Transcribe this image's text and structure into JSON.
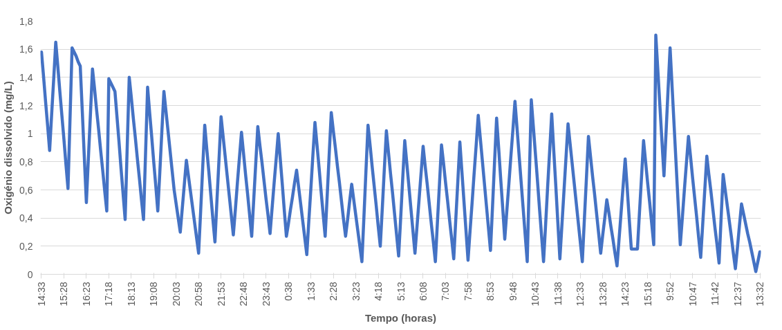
{
  "chart_data": {
    "type": "line",
    "xlabel": "Tempo (horas)",
    "ylabel": "Oxigénio dissolvido (mg/L)",
    "categories": [
      "14:33",
      null,
      null,
      null,
      null,
      null,
      null,
      null,
      null,
      null,
      null,
      "15:28",
      null,
      null,
      null,
      null,
      null,
      null,
      null,
      null,
      null,
      null,
      "16:23",
      null,
      null,
      null,
      null,
      null,
      null,
      null,
      null,
      null,
      null,
      "17:18",
      null,
      null,
      null,
      null,
      null,
      null,
      null,
      null,
      null,
      null,
      "18:13",
      null,
      null,
      null,
      null,
      null,
      null,
      null,
      null,
      null,
      null,
      "19:08",
      null,
      null,
      null,
      null,
      null,
      null,
      null,
      null,
      null,
      null,
      "20:03",
      null,
      null,
      null,
      null,
      null,
      null,
      null,
      null,
      null,
      null,
      "20:58",
      null,
      null,
      null,
      null,
      null,
      null,
      null,
      null,
      null,
      null,
      "21:53",
      null,
      null,
      null,
      null,
      null,
      null,
      null,
      null,
      null,
      null,
      "22:48",
      null,
      null,
      null,
      null,
      null,
      null,
      null,
      null,
      null,
      null,
      "23:43",
      null,
      null,
      null,
      null,
      null,
      null,
      null,
      null,
      null,
      null,
      "0:38",
      null,
      null,
      null,
      null,
      null,
      null,
      null,
      null,
      null,
      null,
      "1:33",
      null,
      null,
      null,
      null,
      null,
      null,
      null,
      null,
      null,
      null,
      "2:28",
      null,
      null,
      null,
      null,
      null,
      null,
      null,
      null,
      null,
      null,
      "3:23",
      null,
      null,
      null,
      null,
      null,
      null,
      null,
      null,
      null,
      null,
      "4:18",
      null,
      null,
      null,
      null,
      null,
      null,
      null,
      null,
      null,
      null,
      "5:13",
      null,
      null,
      null,
      null,
      null,
      null,
      null,
      null,
      null,
      null,
      "6:08",
      null,
      null,
      null,
      null,
      null,
      null,
      null,
      null,
      null,
      null,
      "7:03",
      null,
      null,
      null,
      null,
      null,
      null,
      null,
      null,
      null,
      null,
      "7:58",
      null,
      null,
      null,
      null,
      null,
      null,
      null,
      null,
      null,
      null,
      "8:53",
      null,
      null,
      null,
      null,
      null,
      null,
      null,
      null,
      null,
      null,
      "9:48",
      null,
      null,
      null,
      null,
      null,
      null,
      null,
      null,
      null,
      null,
      "10:43",
      null,
      null,
      null,
      null,
      null,
      null,
      null,
      null,
      null,
      null,
      "11:38",
      null,
      null,
      null,
      null,
      null,
      null,
      null,
      null,
      null,
      null,
      "12:33",
      null,
      null,
      null,
      null,
      null,
      null,
      null,
      null,
      null,
      null,
      "13:28",
      null,
      null,
      null,
      null,
      null,
      null,
      null,
      null,
      null,
      null,
      "14:23",
      null,
      null,
      null,
      null,
      null,
      null,
      null,
      null,
      null,
      null,
      "15:18",
      null,
      null,
      null,
      null,
      null,
      null,
      null,
      null,
      null,
      null,
      "9:52",
      null,
      null,
      null,
      null,
      null,
      null,
      null,
      null,
      null,
      null,
      "10:47",
      null,
      null,
      null,
      null,
      null,
      null,
      null,
      null,
      null,
      null,
      "11:42",
      null,
      null,
      null,
      null,
      null,
      null,
      null,
      null,
      null,
      null,
      "12:37",
      null,
      null,
      null,
      null,
      null,
      null,
      null,
      null,
      null,
      null,
      "13:32"
    ],
    "series": [
      {
        "color": "#4472c4",
        "values": [
          1.58,
          1.41,
          1.23,
          1.06,
          0.88,
          1.14,
          1.39,
          1.65,
          1.48,
          1.3,
          1.13,
          0.96,
          0.78,
          0.61,
          1.11,
          1.61,
          1.58,
          1.55,
          1.51,
          1.48,
          1.16,
          0.83,
          0.51,
          0.83,
          1.14,
          1.46,
          1.32,
          1.17,
          1.03,
          0.88,
          0.74,
          0.59,
          0.45,
          1.39,
          1.36,
          1.33,
          1.3,
          1.12,
          0.94,
          0.75,
          0.57,
          0.39,
          0.9,
          1.4,
          1.26,
          1.11,
          0.97,
          0.82,
          0.68,
          0.53,
          0.39,
          0.86,
          1.33,
          1.15,
          0.98,
          0.8,
          0.63,
          0.45,
          0.73,
          1.02,
          1.3,
          1.16,
          1.02,
          0.88,
          0.74,
          0.6,
          0.5,
          0.4,
          0.3,
          0.47,
          0.64,
          0.81,
          0.7,
          0.59,
          0.48,
          0.37,
          0.26,
          0.15,
          0.45,
          0.76,
          1.06,
          0.89,
          0.73,
          0.56,
          0.39,
          0.23,
          0.53,
          0.82,
          1.12,
          0.98,
          0.84,
          0.7,
          0.56,
          0.42,
          0.28,
          0.46,
          0.65,
          0.83,
          1.01,
          0.86,
          0.71,
          0.57,
          0.42,
          0.27,
          0.53,
          0.79,
          1.05,
          0.92,
          0.8,
          0.67,
          0.54,
          0.42,
          0.29,
          0.47,
          0.65,
          0.82,
          1.0,
          0.82,
          0.64,
          0.45,
          0.27,
          0.36,
          0.46,
          0.55,
          0.65,
          0.74,
          0.62,
          0.5,
          0.38,
          0.26,
          0.14,
          0.38,
          0.61,
          0.85,
          1.08,
          0.92,
          0.76,
          0.59,
          0.43,
          0.27,
          0.56,
          0.86,
          1.15,
          1.02,
          0.9,
          0.77,
          0.65,
          0.52,
          0.39,
          0.27,
          0.39,
          0.52,
          0.64,
          0.53,
          0.42,
          0.31,
          0.2,
          0.09,
          0.41,
          0.74,
          1.06,
          0.92,
          0.77,
          0.63,
          0.49,
          0.34,
          0.2,
          0.47,
          0.75,
          1.02,
          0.87,
          0.72,
          0.58,
          0.43,
          0.28,
          0.13,
          0.4,
          0.68,
          0.95,
          0.79,
          0.63,
          0.47,
          0.31,
          0.15,
          0.34,
          0.53,
          0.72,
          0.91,
          0.77,
          0.64,
          0.5,
          0.36,
          0.23,
          0.09,
          0.37,
          0.64,
          0.92,
          0.79,
          0.65,
          0.52,
          0.38,
          0.25,
          0.11,
          0.39,
          0.66,
          0.94,
          0.73,
          0.52,
          0.31,
          0.1,
          0.31,
          0.51,
          0.72,
          0.92,
          1.13,
          0.97,
          0.81,
          0.65,
          0.49,
          0.33,
          0.17,
          0.48,
          0.8,
          1.11,
          0.9,
          0.68,
          0.47,
          0.25,
          0.45,
          0.64,
          0.84,
          1.03,
          1.23,
          1.04,
          0.85,
          0.66,
          0.47,
          0.28,
          0.09,
          0.67,
          1.24,
          1.05,
          0.86,
          0.67,
          0.47,
          0.28,
          0.09,
          0.35,
          0.62,
          0.88,
          1.14,
          0.88,
          0.63,
          0.37,
          0.11,
          0.35,
          0.59,
          0.83,
          1.07,
          0.93,
          0.79,
          0.65,
          0.51,
          0.37,
          0.23,
          0.09,
          0.39,
          0.68,
          0.98,
          0.84,
          0.7,
          0.57,
          0.43,
          0.29,
          0.15,
          0.28,
          0.4,
          0.53,
          0.44,
          0.34,
          0.25,
          0.15,
          0.06,
          0.25,
          0.44,
          0.63,
          0.82,
          0.61,
          0.39,
          0.18,
          0.18,
          0.18,
          0.18,
          0.44,
          0.69,
          0.95,
          0.8,
          0.65,
          0.51,
          0.36,
          0.21,
          1.7,
          1.45,
          1.2,
          0.95,
          0.7,
          1.0,
          1.31,
          1.61,
          1.33,
          1.05,
          0.77,
          0.49,
          0.21,
          0.4,
          0.6,
          0.79,
          0.98,
          0.84,
          0.69,
          0.55,
          0.41,
          0.26,
          0.12,
          0.36,
          0.6,
          0.84,
          0.71,
          0.59,
          0.46,
          0.33,
          0.21,
          0.08,
          0.4,
          0.71,
          0.6,
          0.49,
          0.38,
          0.27,
          0.15,
          0.04,
          0.19,
          0.35,
          0.5,
          0.43,
          0.36,
          0.29,
          0.23,
          0.16,
          0.09,
          0.02,
          0.09,
          0.16
        ]
      }
    ],
    "ylim": [
      0,
      1.8
    ],
    "yticks": [
      0,
      {
        "value": 0.2,
        "label": "0,2"
      },
      {
        "value": 0.4,
        "label": "0,4"
      },
      {
        "value": 0.6,
        "label": "0,6"
      },
      {
        "value": 0.8,
        "label": "0,8"
      },
      1,
      {
        "value": 1.2,
        "label": "1,2"
      },
      {
        "value": 1.4,
        "label": "1,4"
      },
      {
        "value": 1.6,
        "label": "1,6"
      },
      {
        "value": 1.8,
        "label": "1,8"
      }
    ],
    "grid": "y",
    "line_style": "solid"
  }
}
